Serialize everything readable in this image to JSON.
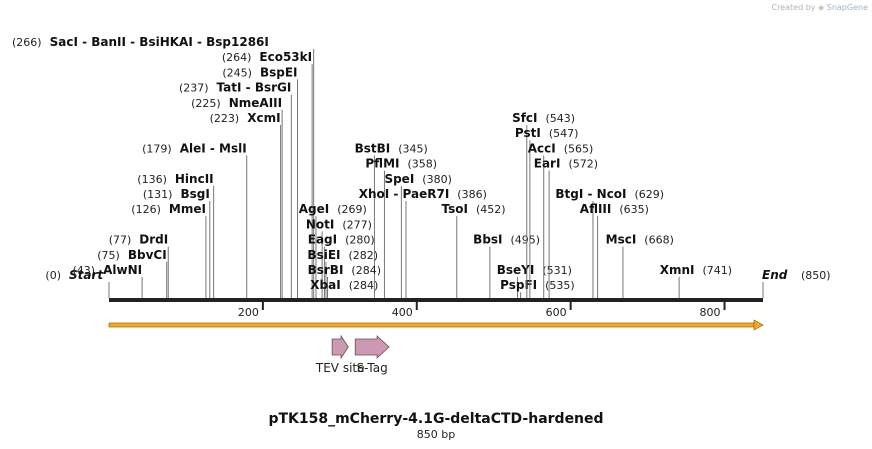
{
  "credit": {
    "prefix": "Created by",
    "brand": "SnapGene"
  },
  "map": {
    "title": "pTK158_mCherry-4.1G-deltaCTD-hardened",
    "length_label": "850 bp",
    "length_bp": 850,
    "start_label": "Start",
    "end_label": "End",
    "start_pos": "(0)",
    "end_pos": "(850)",
    "ruler_ticks": [
      200,
      400,
      600,
      800
    ]
  },
  "features": [
    {
      "name": "TEV site",
      "start": 290,
      "end": 311,
      "color": "#cc99b2"
    },
    {
      "name": "S-Tag",
      "start": 320,
      "end": 364,
      "color": "#cc99b2"
    }
  ],
  "sites": [
    {
      "names": [
        "SacI",
        "BanII",
        "BsiHKAI",
        "Bsp1286I"
      ],
      "pos": 266,
      "pos_label": "(266)",
      "pos_side": "left",
      "line": 1
    },
    {
      "names": [
        "Eco53kI"
      ],
      "pos": 264,
      "pos_label": "(264)",
      "pos_side": "left",
      "line": 2
    },
    {
      "names": [
        "BspEI"
      ],
      "pos": 245,
      "pos_label": "(245)",
      "pos_side": "left",
      "line": 3
    },
    {
      "names": [
        "TatI",
        "BsrGI"
      ],
      "pos": 237,
      "pos_label": "(237)",
      "pos_side": "left",
      "line": 4
    },
    {
      "names": [
        "NmeAIII"
      ],
      "pos": 225,
      "pos_label": "(225)",
      "pos_side": "left",
      "line": 5
    },
    {
      "names": [
        "XcmI"
      ],
      "pos": 223,
      "pos_label": "(223)",
      "pos_side": "left",
      "line": 6
    },
    {
      "names": [
        "AleI",
        "MslI"
      ],
      "pos": 179,
      "pos_label": "(179)",
      "pos_side": "left",
      "line": 8
    },
    {
      "names": [
        "HincII"
      ],
      "pos": 136,
      "pos_label": "(136)",
      "pos_side": "left",
      "line": 10
    },
    {
      "names": [
        "BsgI"
      ],
      "pos": 131,
      "pos_label": "(131)",
      "pos_side": "left",
      "line": 11
    },
    {
      "names": [
        "MmeI"
      ],
      "pos": 126,
      "pos_label": "(126)",
      "pos_side": "left",
      "line": 12
    },
    {
      "names": [
        "DrdI"
      ],
      "pos": 77,
      "pos_label": "(77)",
      "pos_side": "left",
      "line": 14
    },
    {
      "names": [
        "BbvCI"
      ],
      "pos": 75,
      "pos_label": "(75)",
      "pos_side": "left",
      "line": 15
    },
    {
      "names": [
        "AlwNI"
      ],
      "pos": 43,
      "pos_label": "(43)",
      "pos_side": "left",
      "line": 16
    },
    {
      "names": [
        "BstBI"
      ],
      "pos": 345,
      "pos_label": "(345)",
      "pos_side": "right",
      "line": 8
    },
    {
      "names": [
        "PflMI"
      ],
      "pos": 358,
      "pos_label": "(358)",
      "pos_side": "right",
      "line": 9
    },
    {
      "names": [
        "SpeI"
      ],
      "pos": 380,
      "pos_label": "(380)",
      "pos_side": "right",
      "line": 10
    },
    {
      "names": [
        "XhoI",
        "PaeR7I"
      ],
      "pos": 386,
      "pos_label": "(386)",
      "pos_side": "right",
      "line": 11
    },
    {
      "names": [
        "AgeI"
      ],
      "pos": 269,
      "pos_label": "(269)",
      "pos_side": "right",
      "line": 12
    },
    {
      "names": [
        "NotI"
      ],
      "pos": 277,
      "pos_label": "(277)",
      "pos_side": "right",
      "line": 13
    },
    {
      "names": [
        "EagI"
      ],
      "pos": 280,
      "pos_label": "(280)",
      "pos_side": "right",
      "line": 14
    },
    {
      "names": [
        "BsiEI"
      ],
      "pos": 282,
      "pos_label": "(282)",
      "pos_side": "right",
      "line": 15
    },
    {
      "names": [
        "BsrBI"
      ],
      "pos": 284,
      "pos_label": "(284)",
      "pos_side": "right",
      "line": 16
    },
    {
      "names": [
        "XbaI"
      ],
      "pos": 284,
      "pos_label": "(284)",
      "pos_side": "right",
      "line": 17
    },
    {
      "names": [
        "TsoI"
      ],
      "pos": 452,
      "pos_label": "(452)",
      "pos_side": "right",
      "line": 12
    },
    {
      "names": [
        "BbsI"
      ],
      "pos": 495,
      "pos_label": "(495)",
      "pos_side": "right",
      "line": 14
    },
    {
      "names": [
        "BseYI"
      ],
      "pos": 531,
      "pos_label": "(531)",
      "pos_side": "right",
      "line": 16
    },
    {
      "names": [
        "PspFI"
      ],
      "pos": 535,
      "pos_label": "(535)",
      "pos_side": "right",
      "line": 17
    },
    {
      "names": [
        "SfcI"
      ],
      "pos": 543,
      "pos_label": "(543)",
      "pos_side": "right",
      "line": 6
    },
    {
      "names": [
        "PstI"
      ],
      "pos": 547,
      "pos_label": "(547)",
      "pos_side": "right",
      "line": 7
    },
    {
      "names": [
        "AccI"
      ],
      "pos": 565,
      "pos_label": "(565)",
      "pos_side": "right",
      "line": 8
    },
    {
      "names": [
        "EarI"
      ],
      "pos": 572,
      "pos_label": "(572)",
      "pos_side": "right",
      "line": 9
    },
    {
      "names": [
        "BtgI",
        "NcoI"
      ],
      "pos": 629,
      "pos_label": "(629)",
      "pos_side": "right",
      "line": 11
    },
    {
      "names": [
        "AflIII"
      ],
      "pos": 635,
      "pos_label": "(635)",
      "pos_side": "right",
      "line": 12
    },
    {
      "names": [
        "MscI"
      ],
      "pos": 668,
      "pos_label": "(668)",
      "pos_side": "right",
      "line": 14
    },
    {
      "names": [
        "XmnI"
      ],
      "pos": 741,
      "pos_label": "(741)",
      "pos_side": "right",
      "line": 16
    }
  ],
  "colors": {
    "backbone": "#222222",
    "orf_fill": "#f7a823",
    "orf_stroke": "#8a5a00",
    "feature_stroke": "#6b4a5a",
    "site_line": "#777777",
    "pos_text": "#222222",
    "name_text": "#111111"
  }
}
